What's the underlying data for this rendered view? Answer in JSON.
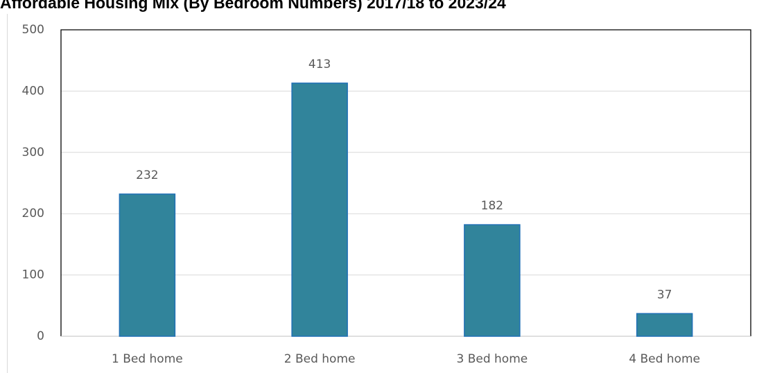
{
  "chart_data": {
    "type": "bar",
    "title": "Affordable Housing Mix (By Bedroom Numbers) 2017/18 to 2023/24",
    "categories": [
      "1 Bed home",
      "2 Bed home",
      "3 Bed home",
      "4 Bed home"
    ],
    "values": [
      232,
      413,
      182,
      37
    ],
    "color": "#31849b",
    "ylim": [
      0,
      500
    ],
    "yticks": [
      0,
      100,
      200,
      300,
      400,
      500
    ],
    "grid": true
  }
}
